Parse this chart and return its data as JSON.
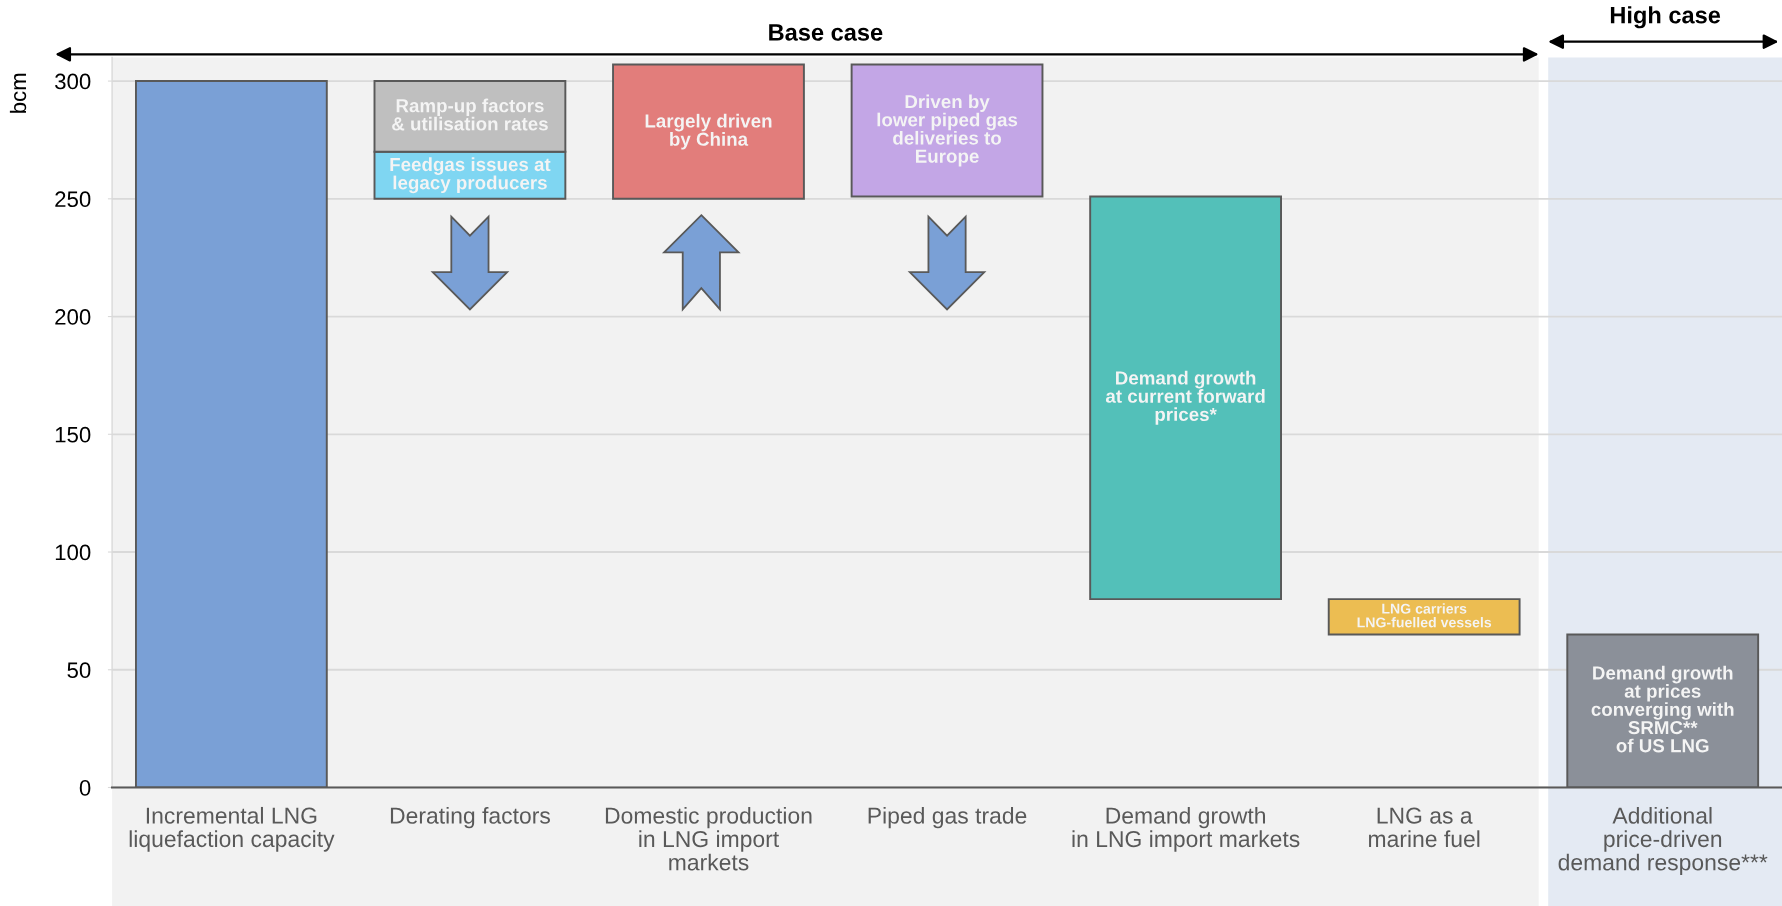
{
  "chart_data": {
    "type": "bar",
    "ylabel": "bcm",
    "categories": [
      "Incremental LNG\nliquefaction capacity",
      "Derating factors",
      "Domestic production\nin LNG import\nmarkets",
      "Piped gas trade",
      "Demand growth\nin LNG import markets",
      "LNG as a\nmarine fuel",
      "Additional\nprice-driven\ndemand response***"
    ],
    "series": [
      {
        "color": "#7aa0d6",
        "values": [
          300,
          null,
          null,
          null,
          null,
          null,
          null
        ],
        "base": [
          0,
          null,
          null,
          null,
          null,
          null,
          null
        ]
      },
      {
        "name": "Feedgas issues at\nlegacy producers",
        "color": "#7fd6f2",
        "values": [
          null,
          20,
          null,
          null,
          null,
          null,
          null
        ],
        "base": [
          null,
          250,
          null,
          null,
          null,
          null,
          null
        ]
      },
      {
        "name": "Ramp-up factors\n& utilisation rates",
        "color": "#bfbfbf",
        "values": [
          null,
          30,
          null,
          null,
          null,
          null,
          null
        ],
        "base": [
          null,
          270,
          null,
          null,
          null,
          null,
          null
        ]
      },
      {
        "name": "Largely driven\nby China",
        "color": "#e27d7b",
        "values": [
          null,
          null,
          57,
          null,
          null,
          null,
          null
        ],
        "base": [
          null,
          null,
          250,
          null,
          null,
          null,
          null
        ]
      },
      {
        "name": "Driven by\nlower piped gas\ndeliveries to\nEurope",
        "color": "#c3a6e6",
        "values": [
          null,
          null,
          null,
          56,
          null,
          null,
          null
        ],
        "base": [
          null,
          null,
          null,
          251,
          null,
          null,
          null
        ]
      },
      {
        "name": "Demand growth\nat current forward\nprices*",
        "color": "#53c0b9",
        "values": [
          null,
          null,
          null,
          null,
          171,
          null,
          null
        ],
        "base": [
          null,
          null,
          null,
          null,
          80,
          null,
          null
        ]
      },
      {
        "name": "LNG carriers\nLNG-fuelled vessels",
        "color": "#ecbd52",
        "values": [
          null,
          null,
          null,
          null,
          null,
          15,
          null
        ],
        "base": [
          null,
          null,
          null,
          null,
          null,
          65,
          null
        ]
      },
      {
        "name": "Demand growth\nat prices\nconverging with\nSRMC**\nof US LNG",
        "color": "#8b9099",
        "values": [
          null,
          null,
          null,
          null,
          null,
          null,
          65
        ],
        "base": [
          null,
          null,
          null,
          null,
          null,
          null,
          0
        ]
      }
    ],
    "ylim": [
      0,
      310
    ],
    "yticks": [
      0,
      50,
      100,
      150,
      200,
      250,
      300
    ],
    "grid": "y",
    "bands": [
      {
        "axis": "x",
        "from": "Incremental LNG\nliquefaction capacity",
        "to": "LNG as a\nmarine fuel",
        "label": "Base case",
        "color": "#f2f2f2"
      },
      {
        "axis": "x",
        "from": "Additional\nprice-driven\ndemand response***",
        "to": "Additional\nprice-driven\ndemand response***",
        "label": "High case",
        "color": "#e4eaf3"
      }
    ]
  }
}
